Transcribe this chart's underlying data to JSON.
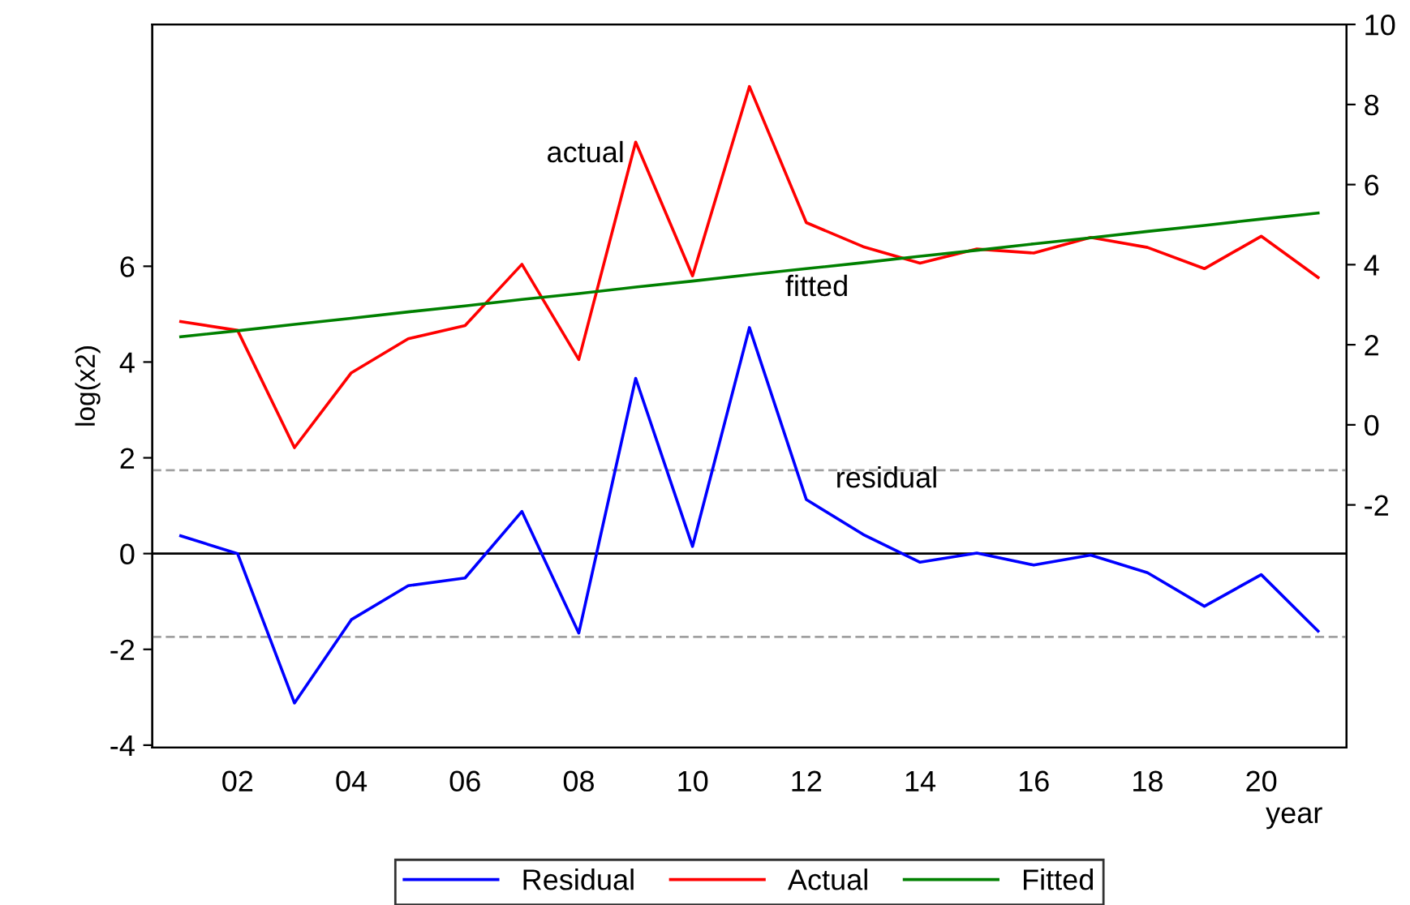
{
  "chart_data": {
    "type": "line",
    "categories": [
      null,
      "02",
      null,
      "04",
      null,
      "06",
      null,
      "08",
      null,
      "10",
      null,
      "12",
      null,
      "14",
      null,
      "16",
      null,
      "18",
      null,
      "20",
      null
    ],
    "xlabel": "year",
    "ylabel": "log(x2)",
    "series": [
      {
        "name": "Residual",
        "color": "#0000ff",
        "values": [
          0.37,
          0.0,
          -3.12,
          -1.38,
          -0.67,
          -0.51,
          0.88,
          -1.66,
          3.66,
          0.15,
          4.72,
          1.13,
          0.4,
          -0.18,
          0.01,
          -0.24,
          -0.03,
          -0.4,
          -1.1,
          -0.44,
          -1.62
        ]
      },
      {
        "name": "Actual",
        "color": "#ff0000",
        "axis": "y2",
        "values": [
          2.58,
          2.36,
          -0.57,
          1.3,
          2.15,
          2.48,
          4.01,
          1.63,
          7.06,
          3.72,
          8.45,
          5.05,
          4.45,
          4.04,
          4.39,
          4.29,
          4.68,
          4.43,
          3.9,
          4.71,
          3.68
        ]
      },
      {
        "name": "Fitted",
        "color": "#008000",
        "axis": "y2",
        "values": [
          2.2,
          2.35,
          2.51,
          2.66,
          2.82,
          2.97,
          3.13,
          3.28,
          3.44,
          3.59,
          3.75,
          3.9,
          4.05,
          4.21,
          4.36,
          4.52,
          4.67,
          4.83,
          4.98,
          5.14,
          5.29
        ]
      }
    ],
    "ylim": [
      -4.05,
      11.05
    ],
    "yticks": [
      -4,
      -2,
      0,
      2,
      4,
      6
    ],
    "y2lim": [
      -8.06,
      10
    ],
    "y2ticks": [
      -2,
      0,
      2,
      4,
      6,
      8,
      10
    ],
    "ref_lines": [
      {
        "axis": "y",
        "value": 0,
        "color": "#000000",
        "line_style": "solid"
      },
      {
        "axis": "y",
        "value": 1.74,
        "color": "#a0a0a0",
        "line_style": "dashed"
      },
      {
        "axis": "y",
        "value": -1.74,
        "color": "#a0a0a0",
        "line_style": "dashed"
      }
    ],
    "annotations": [
      "actual",
      "fitted",
      "residual"
    ],
    "legend": "bottom",
    "grid": false,
    "marker": "none",
    "line_style": "solid"
  }
}
